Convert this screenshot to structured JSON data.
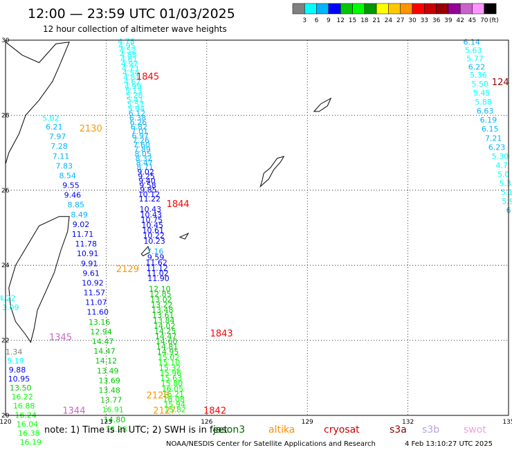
{
  "header": {
    "title": "12:00 — 23:59 UTC 01/03/2025",
    "subtitle": "12 hour collection of altimeter wave heights"
  },
  "colorbar": {
    "colors": [
      "#808080",
      "#00ffff",
      "#00b4ff",
      "#0000ff",
      "#00c800",
      "#00ff00",
      "#009600",
      "#ffff00",
      "#ffc800",
      "#ff9600",
      "#ff0000",
      "#c80000",
      "#960000",
      "#960096",
      "#c864c8",
      "#ff96ff",
      "#000000"
    ],
    "labels": [
      "3",
      "6",
      "9",
      "12",
      "15",
      "18",
      "21",
      "24",
      "27",
      "30",
      "33",
      "36",
      "39",
      "42",
      "45",
      "70"
    ],
    "unit": "(ft)"
  },
  "axes": {
    "lon_labels": [
      "120",
      "123",
      "126",
      "129",
      "132",
      "135"
    ],
    "lat_labels": [
      "30",
      "28",
      "26",
      "24",
      "22",
      "20"
    ]
  },
  "satellites": [
    {
      "name": "jason3",
      "color": "#006400"
    },
    {
      "name": "altika",
      "color": "#ff8c00"
    },
    {
      "name": "cryosat",
      "color": "#cc0000"
    },
    {
      "name": "s3a",
      "color": "#8b0000"
    },
    {
      "name": "s3b",
      "color": "#b8a0e0"
    },
    {
      "name": "swot",
      "color": "#f0a0e0"
    }
  ],
  "footer": {
    "note": "note: 1) Time is in UTC; 2) SWH is in feet",
    "credit": "NOAA/NESDIS Center for Satellite Applications and Research",
    "timestamp": "4 Feb 13:10:27 UTC 2025"
  },
  "time_labels": [
    {
      "text": "1845",
      "lon": 123.9,
      "lat": 28.95,
      "color": "#ff0000"
    },
    {
      "text": "2130",
      "lon": 122.2,
      "lat": 27.56,
      "color": "#ff9600"
    },
    {
      "text": "1844",
      "lon": 124.8,
      "lat": 25.55,
      "color": "#ff0000"
    },
    {
      "text": "2129",
      "lon": 123.3,
      "lat": 23.82,
      "color": "#ff9600"
    },
    {
      "text": "1843",
      "lon": 126.1,
      "lat": 22.1,
      "color": "#ff0000"
    },
    {
      "text": "1345",
      "lon": 121.3,
      "lat": 22.0,
      "color": "#c864c8"
    },
    {
      "text": "2128",
      "lon": 124.2,
      "lat": 20.45,
      "color": "#ff9600"
    },
    {
      "text": "2127",
      "lon": 124.4,
      "lat": 20.05,
      "color": "#ff9600"
    },
    {
      "text": "1842",
      "lon": 125.9,
      "lat": 20.05,
      "color": "#ff0000"
    },
    {
      "text": "1344",
      "lon": 121.7,
      "lat": 20.05,
      "color": "#c864c8"
    },
    {
      "text": "124",
      "lon": 134.5,
      "lat": 28.8,
      "color": "#960000"
    }
  ],
  "tracks": [
    {
      "name": "altika-west-track",
      "values": [
        {
          "lon": 121.35,
          "lat": 27.85,
          "swh": "5.02"
        },
        {
          "lon": 121.45,
          "lat": 27.62,
          "swh": "6.21"
        },
        {
          "lon": 121.55,
          "lat": 27.36,
          "swh": "7.97"
        },
        {
          "lon": 121.6,
          "lat": 27.1,
          "swh": "7.28"
        },
        {
          "lon": 121.65,
          "lat": 26.84,
          "swh": "7.11"
        },
        {
          "lon": 121.75,
          "lat": 26.58,
          "swh": "7.83"
        },
        {
          "lon": 121.85,
          "lat": 26.32,
          "swh": "8.54"
        },
        {
          "lon": 121.95,
          "lat": 26.06,
          "swh": "9.55"
        },
        {
          "lon": 122.0,
          "lat": 25.8,
          "swh": "9.46"
        },
        {
          "lon": 122.1,
          "lat": 25.54,
          "swh": "8.85"
        },
        {
          "lon": 122.2,
          "lat": 25.28,
          "swh": "8.49"
        },
        {
          "lon": 122.25,
          "lat": 25.02,
          "swh": "9.02"
        },
        {
          "lon": 122.3,
          "lat": 24.76,
          "swh": "11.71"
        },
        {
          "lon": 122.4,
          "lat": 24.5,
          "swh": "11.78"
        },
        {
          "lon": 122.45,
          "lat": 24.24,
          "swh": "10.91"
        },
        {
          "lon": 122.5,
          "lat": 23.98,
          "swh": "9.91"
        },
        {
          "lon": 122.55,
          "lat": 23.72,
          "swh": "9.61"
        },
        {
          "lon": 122.6,
          "lat": 23.46,
          "swh": "10.92"
        },
        {
          "lon": 122.65,
          "lat": 23.2,
          "swh": "11.57"
        },
        {
          "lon": 122.7,
          "lat": 22.94,
          "swh": "11.07"
        },
        {
          "lon": 122.75,
          "lat": 22.68,
          "swh": "11.60"
        },
        {
          "lon": 122.8,
          "lat": 22.42,
          "swh": "13.16"
        },
        {
          "lon": 122.85,
          "lat": 22.16,
          "swh": "12.94"
        },
        {
          "lon": 122.9,
          "lat": 21.9,
          "swh": "14.47"
        },
        {
          "lon": 122.95,
          "lat": 21.64,
          "swh": "14.47"
        },
        {
          "lon": 123.0,
          "lat": 21.38,
          "swh": "14.12"
        },
        {
          "lon": 123.05,
          "lat": 21.12,
          "swh": "13.49"
        },
        {
          "lon": 123.1,
          "lat": 20.86,
          "swh": "13.69"
        },
        {
          "lon": 123.1,
          "lat": 20.6,
          "swh": "13.48"
        },
        {
          "lon": 123.15,
          "lat": 20.34,
          "swh": "13.77"
        },
        {
          "lon": 123.2,
          "lat": 20.08,
          "swh": "16.91"
        },
        {
          "lon": 123.25,
          "lat": 19.82,
          "swh": "14.80"
        },
        {
          "lon": 123.3,
          "lat": 19.56,
          "swh": "15.28"
        }
      ]
    },
    {
      "name": "swot-taiwan-track",
      "values": [
        {
          "lon": 120.05,
          "lat": 23.05,
          "swh": "4.22"
        },
        {
          "lon": 120.15,
          "lat": 22.8,
          "swh": "3.09"
        },
        {
          "lon": 120.25,
          "lat": 21.62,
          "swh": "1.34"
        },
        {
          "lon": 120.3,
          "lat": 21.38,
          "swh": "5.19"
        },
        {
          "lon": 120.35,
          "lat": 21.14,
          "swh": "9.88"
        },
        {
          "lon": 120.4,
          "lat": 20.9,
          "swh": "10.95"
        },
        {
          "lon": 120.45,
          "lat": 20.66,
          "swh": "13.50"
        },
        {
          "lon": 120.5,
          "lat": 20.42,
          "swh": "16.22"
        },
        {
          "lon": 120.55,
          "lat": 20.18,
          "swh": "16.88"
        },
        {
          "lon": 120.6,
          "lat": 19.94,
          "swh": "16.24"
        },
        {
          "lon": 120.65,
          "lat": 19.7,
          "swh": "16.04"
        },
        {
          "lon": 120.7,
          "lat": 19.46,
          "swh": "16.38"
        },
        {
          "lon": 120.75,
          "lat": 19.22,
          "swh": "16.19"
        }
      ]
    },
    {
      "name": "cryosat-dense-track",
      "values": [
        {
          "lon": 123.6,
          "lat": 29.9,
          "swh": "4.78"
        },
        {
          "lon": 123.62,
          "lat": 29.78,
          "swh": "4.95"
        },
        {
          "lon": 123.64,
          "lat": 29.66,
          "swh": "4.52"
        },
        {
          "lon": 123.66,
          "lat": 29.54,
          "swh": "4.88"
        },
        {
          "lon": 123.68,
          "lat": 29.42,
          "swh": "4.61"
        },
        {
          "lon": 123.7,
          "lat": 29.3,
          "swh": "4.97"
        },
        {
          "lon": 123.72,
          "lat": 29.18,
          "swh": "4.73"
        },
        {
          "lon": 123.74,
          "lat": 29.06,
          "swh": "4.54"
        },
        {
          "lon": 123.76,
          "lat": 28.94,
          "swh": "4.81"
        },
        {
          "lon": 123.78,
          "lat": 28.82,
          "swh": "4.62"
        },
        {
          "lon": 123.8,
          "lat": 28.7,
          "swh": "4.99"
        },
        {
          "lon": 123.82,
          "lat": 28.58,
          "swh": "5.13"
        },
        {
          "lon": 123.84,
          "lat": 28.46,
          "swh": "5.28"
        },
        {
          "lon": 123.86,
          "lat": 28.34,
          "swh": "5.41"
        },
        {
          "lon": 123.88,
          "lat": 28.22,
          "swh": "5.57"
        },
        {
          "lon": 123.9,
          "lat": 28.1,
          "swh": "5.94"
        },
        {
          "lon": 123.92,
          "lat": 27.98,
          "swh": "6.12"
        },
        {
          "lon": 123.94,
          "lat": 27.86,
          "swh": "6.38"
        },
        {
          "lon": 123.96,
          "lat": 27.74,
          "swh": "6.26"
        },
        {
          "lon": 123.98,
          "lat": 27.62,
          "swh": "6.82"
        },
        {
          "lon": 124.0,
          "lat": 27.5,
          "swh": "7.01"
        },
        {
          "lon": 124.02,
          "lat": 27.38,
          "swh": "6.97"
        },
        {
          "lon": 124.04,
          "lat": 27.26,
          "swh": "7.26"
        },
        {
          "lon": 124.06,
          "lat": 27.14,
          "swh": "7.60"
        },
        {
          "lon": 124.08,
          "lat": 27.02,
          "swh": "7.89"
        },
        {
          "lon": 124.1,
          "lat": 26.9,
          "swh": "8.05"
        },
        {
          "lon": 124.12,
          "lat": 26.78,
          "swh": "8.32"
        },
        {
          "lon": 124.14,
          "lat": 26.66,
          "swh": "8.47"
        },
        {
          "lon": 124.16,
          "lat": 26.54,
          "swh": "8.71"
        },
        {
          "lon": 124.18,
          "lat": 26.42,
          "swh": "9.02"
        },
        {
          "lon": 124.2,
          "lat": 26.3,
          "swh": "9.25"
        },
        {
          "lon": 124.22,
          "lat": 26.18,
          "swh": "9.40"
        },
        {
          "lon": 124.24,
          "lat": 26.06,
          "swh": "9.58"
        },
        {
          "lon": 124.26,
          "lat": 25.94,
          "swh": "9.85"
        },
        {
          "lon": 124.28,
          "lat": 25.82,
          "swh": "10.12"
        },
        {
          "lon": 124.3,
          "lat": 25.7,
          "swh": "11.22"
        },
        {
          "lon": 124.32,
          "lat": 25.42,
          "swh": "10.43"
        },
        {
          "lon": 124.34,
          "lat": 25.28,
          "swh": "10.43"
        },
        {
          "lon": 124.36,
          "lat": 25.14,
          "swh": "10.75"
        },
        {
          "lon": 124.38,
          "lat": 25.0,
          "swh": "10.45"
        },
        {
          "lon": 124.4,
          "lat": 24.86,
          "swh": "10.61"
        },
        {
          "lon": 124.42,
          "lat": 24.72,
          "swh": "10.22"
        },
        {
          "lon": 124.44,
          "lat": 24.58,
          "swh": "10.23"
        },
        {
          "lon": 124.46,
          "lat": 24.3,
          "swh": "7.16"
        },
        {
          "lon": 124.48,
          "lat": 24.14,
          "swh": "9.59"
        },
        {
          "lon": 124.5,
          "lat": 24.0,
          "swh": "11.62"
        },
        {
          "lon": 124.52,
          "lat": 23.86,
          "swh": "11.12"
        },
        {
          "lon": 124.54,
          "lat": 23.72,
          "swh": "11.02"
        },
        {
          "lon": 124.56,
          "lat": 23.58,
          "swh": "11.90"
        }
      ]
    },
    {
      "name": "jason3-dense-track",
      "values": [
        {
          "lon": 124.6,
          "lat": 23.3,
          "swh": "12.10"
        },
        {
          "lon": 124.62,
          "lat": 23.16,
          "swh": "12.85"
        },
        {
          "lon": 124.64,
          "lat": 23.02,
          "swh": "13.02"
        },
        {
          "lon": 124.66,
          "lat": 22.88,
          "swh": "13.22"
        },
        {
          "lon": 124.68,
          "lat": 22.74,
          "swh": "13.48"
        },
        {
          "lon": 124.7,
          "lat": 22.6,
          "swh": "13.61"
        },
        {
          "lon": 124.72,
          "lat": 22.46,
          "swh": "13.84"
        },
        {
          "lon": 124.74,
          "lat": 22.32,
          "swh": "14.02"
        },
        {
          "lon": 124.76,
          "lat": 22.18,
          "swh": "14.25"
        },
        {
          "lon": 124.78,
          "lat": 22.04,
          "swh": "14.47"
        },
        {
          "lon": 124.8,
          "lat": 21.9,
          "swh": "14.60"
        },
        {
          "lon": 124.82,
          "lat": 21.76,
          "swh": "14.81"
        },
        {
          "lon": 124.84,
          "lat": 21.62,
          "swh": "14.95"
        },
        {
          "lon": 124.86,
          "lat": 21.48,
          "swh": "15.02"
        },
        {
          "lon": 124.88,
          "lat": 21.34,
          "swh": "15.10"
        },
        {
          "lon": 124.9,
          "lat": 21.2,
          "swh": "15.32"
        },
        {
          "lon": 124.92,
          "lat": 21.06,
          "swh": "15.96"
        },
        {
          "lon": 124.94,
          "lat": 20.92,
          "swh": "15.63"
        },
        {
          "lon": 124.96,
          "lat": 20.78,
          "swh": "15.80"
        },
        {
          "lon": 124.98,
          "lat": 20.64,
          "swh": "16.05"
        },
        {
          "lon": 125.0,
          "lat": 20.5,
          "swh": "16.21"
        },
        {
          "lon": 125.02,
          "lat": 20.36,
          "swh": "16.08"
        },
        {
          "lon": 125.04,
          "lat": 20.22,
          "swh": "15.94"
        },
        {
          "lon": 125.06,
          "lat": 20.08,
          "swh": "15.82"
        }
      ]
    },
    {
      "name": "east-edge-track",
      "values": [
        {
          "lon": 133.9,
          "lat": 29.88,
          "swh": "6.14"
        },
        {
          "lon": 133.95,
          "lat": 29.66,
          "swh": "5.63"
        },
        {
          "lon": 134.0,
          "lat": 29.44,
          "swh": "5.77"
        },
        {
          "lon": 134.05,
          "lat": 29.22,
          "swh": "6.22"
        },
        {
          "lon": 134.1,
          "lat": 29.0,
          "swh": "5.36"
        },
        {
          "lon": 134.15,
          "lat": 28.76,
          "swh": "5.50"
        },
        {
          "lon": 134.2,
          "lat": 28.52,
          "swh": "5.45"
        },
        {
          "lon": 134.25,
          "lat": 28.28,
          "swh": "5.88"
        },
        {
          "lon": 134.3,
          "lat": 28.04,
          "swh": "6.63"
        },
        {
          "lon": 134.4,
          "lat": 27.8,
          "swh": "6.19"
        },
        {
          "lon": 134.45,
          "lat": 27.56,
          "swh": "6.15"
        },
        {
          "lon": 134.55,
          "lat": 27.32,
          "swh": "7.21"
        },
        {
          "lon": 134.65,
          "lat": 27.08,
          "swh": "6.23"
        },
        {
          "lon": 134.75,
          "lat": 26.84,
          "swh": "5.30"
        },
        {
          "lon": 134.8,
          "lat": 26.6,
          "swh": "4.7"
        },
        {
          "lon": 134.85,
          "lat": 26.36,
          "swh": "5.0"
        },
        {
          "lon": 134.9,
          "lat": 26.12,
          "swh": "5.3"
        },
        {
          "lon": 134.95,
          "lat": 25.88,
          "swh": "5.1"
        },
        {
          "lon": 134.98,
          "lat": 25.64,
          "swh": "5.9"
        },
        {
          "lon": 135.0,
          "lat": 25.4,
          "swh": "6"
        }
      ]
    }
  ],
  "lands": [
    {
      "name": "taiwan",
      "points": [
        [
          121.9,
          25.3
        ],
        [
          121.6,
          25.3
        ],
        [
          121.0,
          25.05
        ],
        [
          120.7,
          24.6
        ],
        [
          120.3,
          24.0
        ],
        [
          120.1,
          23.4
        ],
        [
          120.15,
          22.9
        ],
        [
          120.3,
          22.5
        ],
        [
          120.6,
          22.15
        ],
        [
          120.75,
          21.95
        ],
        [
          120.85,
          22.3
        ],
        [
          120.95,
          22.8
        ],
        [
          121.2,
          23.3
        ],
        [
          121.45,
          23.8
        ],
        [
          121.65,
          24.4
        ],
        [
          121.85,
          24.9
        ]
      ]
    },
    {
      "name": "china-coast-a",
      "points": [
        [
          120.0,
          29.95
        ],
        [
          120.5,
          29.6
        ],
        [
          121.0,
          29.4
        ],
        [
          121.5,
          29.9
        ],
        [
          121.9,
          29.95
        ],
        [
          121.6,
          29.3
        ],
        [
          121.4,
          28.9
        ],
        [
          121.0,
          28.4
        ],
        [
          120.6,
          28.0
        ],
        [
          120.4,
          27.5
        ],
        [
          120.1,
          27.0
        ],
        [
          120.0,
          26.7
        ]
      ]
    },
    {
      "name": "okinawa",
      "points": [
        [
          127.6,
          26.1
        ],
        [
          127.85,
          26.3
        ],
        [
          128.0,
          26.55
        ],
        [
          128.2,
          26.75
        ],
        [
          128.3,
          26.9
        ],
        [
          128.1,
          26.85
        ],
        [
          127.9,
          26.6
        ],
        [
          127.7,
          26.45
        ],
        [
          127.65,
          26.25
        ]
      ]
    },
    {
      "name": "amami",
      "points": [
        [
          129.2,
          28.1
        ],
        [
          129.4,
          28.3
        ],
        [
          129.7,
          28.45
        ],
        [
          129.6,
          28.25
        ],
        [
          129.35,
          28.1
        ]
      ]
    },
    {
      "name": "miyako",
      "points": [
        [
          125.2,
          24.75
        ],
        [
          125.45,
          24.85
        ],
        [
          125.35,
          24.7
        ]
      ]
    },
    {
      "name": "ishigaki",
      "points": [
        [
          124.05,
          24.3
        ],
        [
          124.25,
          24.5
        ],
        [
          124.3,
          24.35
        ],
        [
          124.1,
          24.25
        ]
      ]
    }
  ]
}
